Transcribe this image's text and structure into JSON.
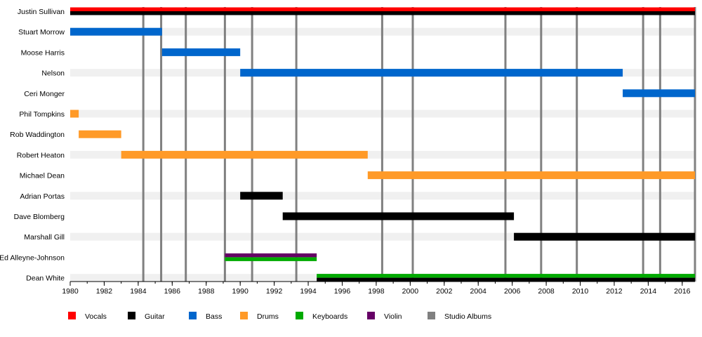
{
  "chart_data": {
    "type": "timeline",
    "x_range": [
      1980,
      2016.75
    ],
    "x_ticks": [
      1980,
      1982,
      1984,
      1986,
      1988,
      1990,
      1992,
      1994,
      1996,
      1998,
      2000,
      2002,
      2004,
      2006,
      2008,
      2010,
      2012,
      2014,
      2016
    ],
    "grid": "alternating row stripes",
    "legend_position": "bottom",
    "roles": [
      {
        "id": "vocals",
        "label": "Vocals",
        "color": "#ff0000"
      },
      {
        "id": "guitar",
        "label": "Guitar",
        "color": "#000000"
      },
      {
        "id": "bass",
        "label": "Bass",
        "color": "#0066cc"
      },
      {
        "id": "drums",
        "label": "Drums",
        "color": "#ff9a28"
      },
      {
        "id": "keyboards",
        "label": "Keyboards",
        "color": "#00aa00"
      },
      {
        "id": "violin",
        "label": "Violin",
        "color": "#660066"
      },
      {
        "id": "albums",
        "label": "Studio Albums",
        "color": "#808080"
      }
    ],
    "members": [
      {
        "name": "Justin Sullivan",
        "bars": [
          {
            "start": 1980,
            "end": 2016.75,
            "roles": [
              "vocals",
              "guitar"
            ]
          }
        ]
      },
      {
        "name": "Stuart Morrow",
        "bars": [
          {
            "start": 1980,
            "end": 1985.4,
            "roles": [
              "bass"
            ]
          }
        ]
      },
      {
        "name": "Moose Harris",
        "bars": [
          {
            "start": 1985.4,
            "end": 1990.0,
            "roles": [
              "bass"
            ]
          }
        ]
      },
      {
        "name": "Nelson",
        "bars": [
          {
            "start": 1990.0,
            "end": 2012.5,
            "roles": [
              "bass"
            ]
          }
        ]
      },
      {
        "name": "Ceri Monger",
        "bars": [
          {
            "start": 2012.5,
            "end": 2016.75,
            "roles": [
              "bass"
            ]
          }
        ]
      },
      {
        "name": "Phil Tompkins",
        "bars": [
          {
            "start": 1980,
            "end": 1980.5,
            "roles": [
              "drums"
            ]
          }
        ]
      },
      {
        "name": "Rob Waddington",
        "bars": [
          {
            "start": 1980.5,
            "end": 1983.0,
            "roles": [
              "drums"
            ]
          }
        ]
      },
      {
        "name": "Robert Heaton",
        "bars": [
          {
            "start": 1983.0,
            "end": 1997.5,
            "roles": [
              "drums"
            ]
          }
        ]
      },
      {
        "name": "Michael Dean",
        "bars": [
          {
            "start": 1997.5,
            "end": 2016.75,
            "roles": [
              "drums"
            ]
          }
        ]
      },
      {
        "name": "Adrian Portas",
        "bars": [
          {
            "start": 1990.0,
            "end": 1992.5,
            "roles": [
              "guitar"
            ]
          }
        ]
      },
      {
        "name": "Dave Blomberg",
        "bars": [
          {
            "start": 1992.5,
            "end": 2006.1,
            "roles": [
              "guitar"
            ]
          }
        ]
      },
      {
        "name": "Marshall Gill",
        "bars": [
          {
            "start": 2006.1,
            "end": 2016.75,
            "roles": [
              "guitar"
            ]
          }
        ]
      },
      {
        "name": "Ed Alleyne-Johnson",
        "bars": [
          {
            "start": 1989.1,
            "end": 1994.5,
            "roles": [
              "violin",
              "keyboards"
            ]
          }
        ]
      },
      {
        "name": "Dean White",
        "bars": [
          {
            "start": 1994.5,
            "end": 2016.75,
            "roles": [
              "keyboards",
              "guitar"
            ]
          }
        ]
      }
    ],
    "studio_albums": [
      1984.3,
      1985.35,
      1986.8,
      1989.1,
      1990.7,
      1993.3,
      1998.35,
      2000.15,
      2005.6,
      2007.7,
      2009.8,
      2013.7,
      2014.7,
      2016.75
    ]
  }
}
